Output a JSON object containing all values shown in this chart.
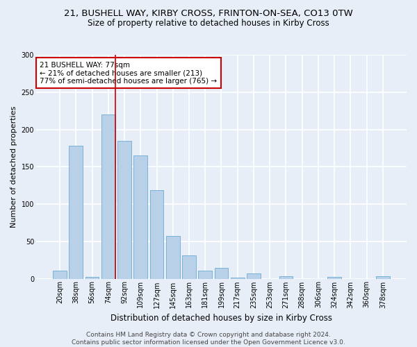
{
  "title_line1": "21, BUSHELL WAY, KIRBY CROSS, FRINTON-ON-SEA, CO13 0TW",
  "title_line2": "Size of property relative to detached houses in Kirby Cross",
  "xlabel": "Distribution of detached houses by size in Kirby Cross",
  "ylabel": "Number of detached properties",
  "categories": [
    "20sqm",
    "38sqm",
    "56sqm",
    "74sqm",
    "92sqm",
    "109sqm",
    "127sqm",
    "145sqm",
    "163sqm",
    "181sqm",
    "199sqm",
    "217sqm",
    "235sqm",
    "253sqm",
    "271sqm",
    "288sqm",
    "306sqm",
    "324sqm",
    "342sqm",
    "360sqm",
    "378sqm"
  ],
  "values": [
    11,
    178,
    2,
    220,
    185,
    165,
    119,
    57,
    31,
    11,
    14,
    1,
    7,
    0,
    3,
    0,
    0,
    2,
    0,
    0,
    3
  ],
  "bar_color": "#b8d0e8",
  "bar_edge_color": "#6aaad4",
  "vline_x_index": 3,
  "vline_color": "#cc0000",
  "annotation_text": "21 BUSHELL WAY: 77sqm\n← 21% of detached houses are smaller (213)\n77% of semi-detached houses are larger (765) →",
  "annotation_box_color": "#ffffff",
  "annotation_box_edge": "#cc0000",
  "ylim": [
    0,
    300
  ],
  "yticks": [
    0,
    50,
    100,
    150,
    200,
    250,
    300
  ],
  "footer_line1": "Contains HM Land Registry data © Crown copyright and database right 2024.",
  "footer_line2": "Contains public sector information licensed under the Open Government Licence v3.0.",
  "background_color": "#e8eef7",
  "grid_color": "#ffffff",
  "title1_fontsize": 9.5,
  "title2_fontsize": 8.5,
  "xlabel_fontsize": 8.5,
  "ylabel_fontsize": 8,
  "tick_fontsize": 7,
  "footer_fontsize": 6.5,
  "ann_fontsize": 7.5
}
